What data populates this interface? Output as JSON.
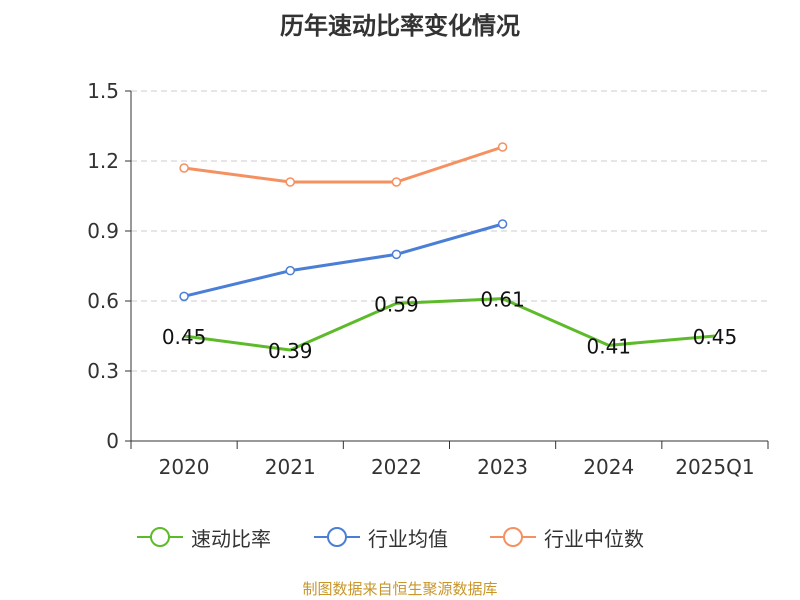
{
  "title": "历年速动比率变化情况",
  "source": "制图数据来自恒生聚源数据库",
  "colors": {
    "speed_ratio": "#5dbb2a",
    "industry_avg": "#4b7fd6",
    "industry_median": "#f59060",
    "grid": "#cccccc",
    "axis": "#333333",
    "source": "#c8962a"
  },
  "chart_data": {
    "type": "line",
    "title": "历年速动比率变化情况",
    "categories": [
      "2020",
      "2021",
      "2022",
      "2023",
      "2024",
      "2025Q1"
    ],
    "ylim": [
      0,
      1.5
    ],
    "yticks": [
      "0",
      "0.3",
      "0.6",
      "0.9",
      "1.2",
      "1.5"
    ],
    "ytick_values": [
      0,
      0.3,
      0.6,
      0.9,
      1.2,
      1.5
    ],
    "grid": true,
    "legend_position": "bottom",
    "series": [
      {
        "name": "速动比率",
        "color": "#5dbb2a",
        "values": [
          0.45,
          0.39,
          0.59,
          0.61,
          0.41,
          0.45
        ],
        "labels": [
          "0.45",
          "0.39",
          "0.59",
          "0.61",
          "0.41",
          "0.45"
        ],
        "show_labels": true
      },
      {
        "name": "行业均值",
        "color": "#4b7fd6",
        "values": [
          0.62,
          0.73,
          0.8,
          0.93,
          null,
          null
        ],
        "show_labels": false
      },
      {
        "name": "行业中位数",
        "color": "#f59060",
        "values": [
          1.17,
          1.11,
          1.11,
          1.26,
          null,
          null
        ],
        "show_labels": false
      }
    ]
  }
}
